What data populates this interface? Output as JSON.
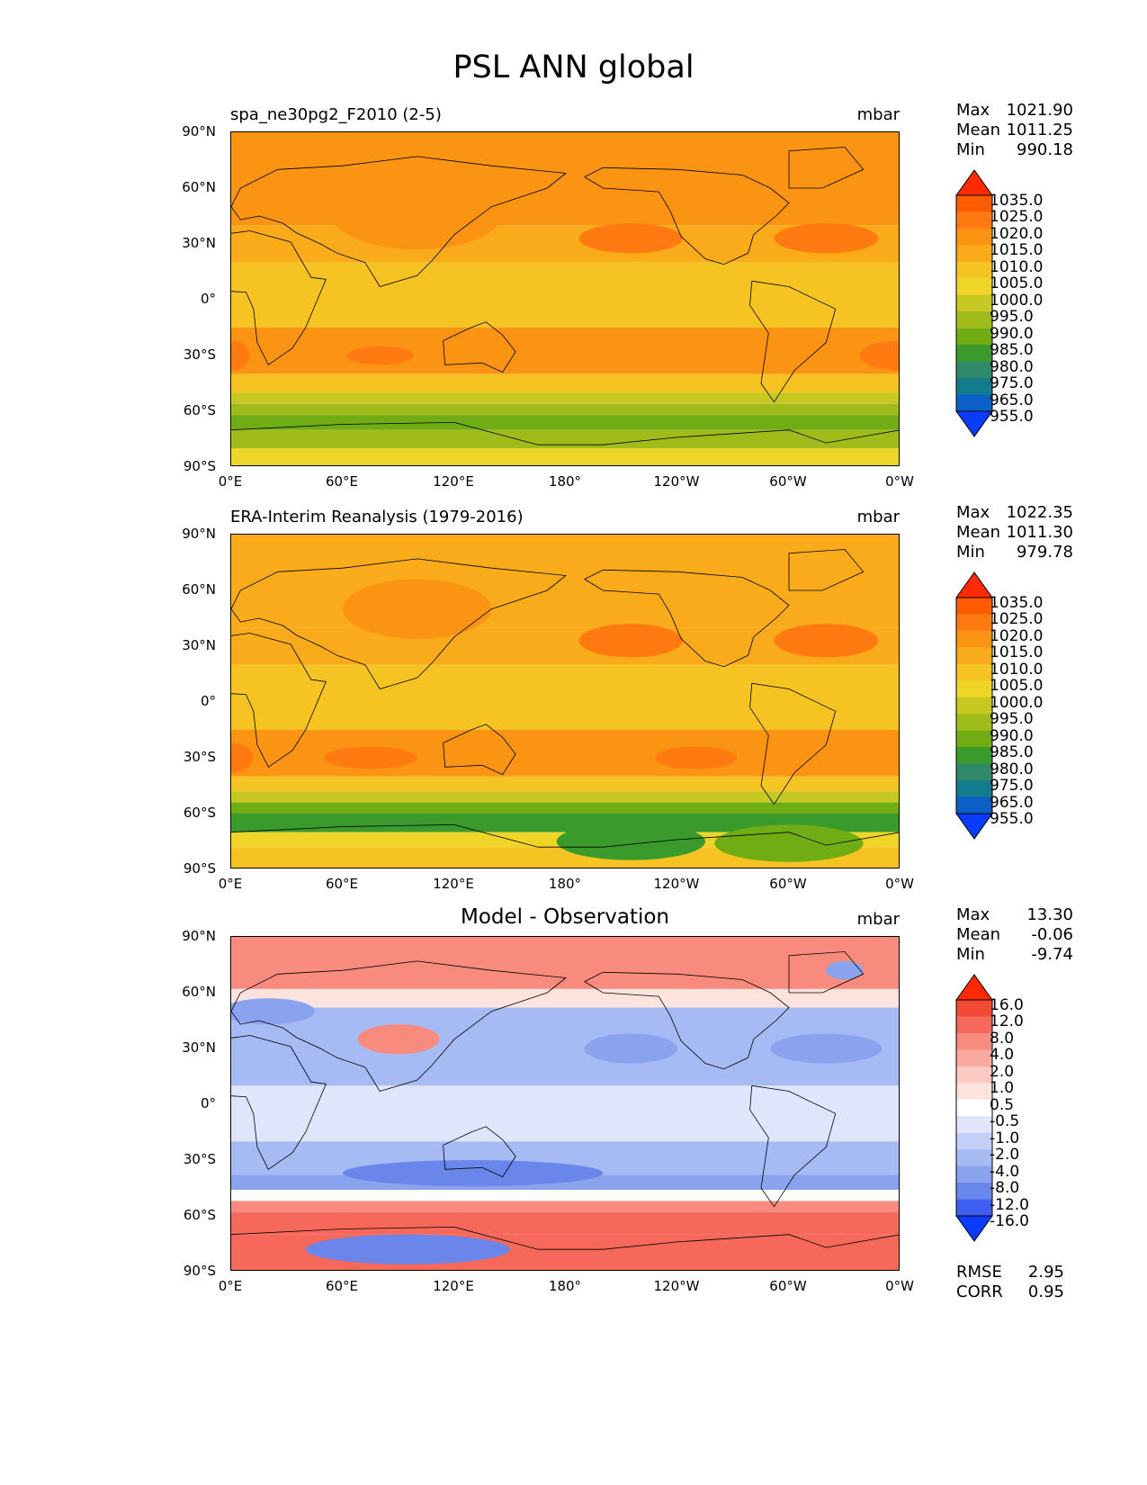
{
  "figure_title": "PSL ANN global",
  "lat_labels": [
    "90°N",
    "60°N",
    "30°N",
    "0°",
    "30°S",
    "60°S",
    "90°S"
  ],
  "lon_labels": [
    "0°E",
    "60°E",
    "120°E",
    "180°",
    "120°W",
    "60°W",
    "0°W"
  ],
  "chart_data": [
    {
      "type": "heatmap",
      "title": "spa_ne30pg2_F2010 (2-5)",
      "units": "mbar",
      "stats": {
        "max_label": "Max",
        "max": "1021.90",
        "mean_label": "Mean",
        "mean": "1011.25",
        "min_label": "Min",
        "min": "990.18"
      },
      "colorbar_levels": [
        "1035.0",
        "1025.0",
        "1020.0",
        "1015.0",
        "1010.0",
        "1005.0",
        "1000.0",
        "995.0",
        "990.0",
        "985.0",
        "980.0",
        "975.0",
        "965.0",
        "955.0"
      ],
      "colors": [
        "#ff2a00",
        "#ff5c00",
        "#ff7a10",
        "#fb9412",
        "#f9ab1a",
        "#f5c322",
        "#efd527",
        "#c7c922",
        "#a0bc1a",
        "#70ad14",
        "#3a9a2c",
        "#2f8a6a",
        "#137b8e",
        "#0b60c8",
        "#0a3cff"
      ],
      "xlim": [
        0,
        360
      ],
      "ylim": [
        -90,
        90
      ]
    },
    {
      "type": "heatmap",
      "title": "ERA-Interim Reanalysis (1979-2016)",
      "units": "mbar",
      "stats": {
        "max_label": "Max",
        "max": "1022.35",
        "mean_label": "Mean",
        "mean": "1011.30",
        "min_label": "Min",
        "min": "979.78"
      },
      "colorbar_levels": [
        "1035.0",
        "1025.0",
        "1020.0",
        "1015.0",
        "1010.0",
        "1005.0",
        "1000.0",
        "995.0",
        "990.0",
        "985.0",
        "980.0",
        "975.0",
        "965.0",
        "955.0"
      ],
      "colors": [
        "#ff2a00",
        "#ff5c00",
        "#ff7a10",
        "#fb9412",
        "#f9ab1a",
        "#f5c322",
        "#efd527",
        "#c7c922",
        "#a0bc1a",
        "#70ad14",
        "#3a9a2c",
        "#2f8a6a",
        "#137b8e",
        "#0b60c8",
        "#0a3cff"
      ],
      "xlim": [
        0,
        360
      ],
      "ylim": [
        -90,
        90
      ]
    },
    {
      "type": "heatmap",
      "title": "Model - Observation",
      "units": "mbar",
      "stats": {
        "max_label": "Max",
        "max": "13.30",
        "mean_label": "Mean",
        "mean": "-0.06",
        "min_label": "Min",
        "min": "-9.74"
      },
      "colorbar_levels": [
        "16.0",
        "12.0",
        "8.0",
        "4.0",
        "2.0",
        "1.0",
        "0.5",
        "-0.5",
        "-1.0",
        "-2.0",
        "-4.0",
        "-8.0",
        "-12.0",
        "-16.0"
      ],
      "colors": [
        "#ff2a00",
        "#f24a35",
        "#f5685a",
        "#f88a7e",
        "#fbaaa0",
        "#fdc9c2",
        "#fde3de",
        "#ffffff",
        "#dfe6fb",
        "#c2d0f7",
        "#a6baf3",
        "#8aa3ef",
        "#6a86ea",
        "#3f5ff0",
        "#0a3cff"
      ],
      "xlim": [
        0,
        360
      ],
      "ylim": [
        -90,
        90
      ],
      "metrics": {
        "rmse_label": "RMSE",
        "rmse": "2.95",
        "corr_label": "CORR",
        "corr": "0.95"
      }
    }
  ]
}
